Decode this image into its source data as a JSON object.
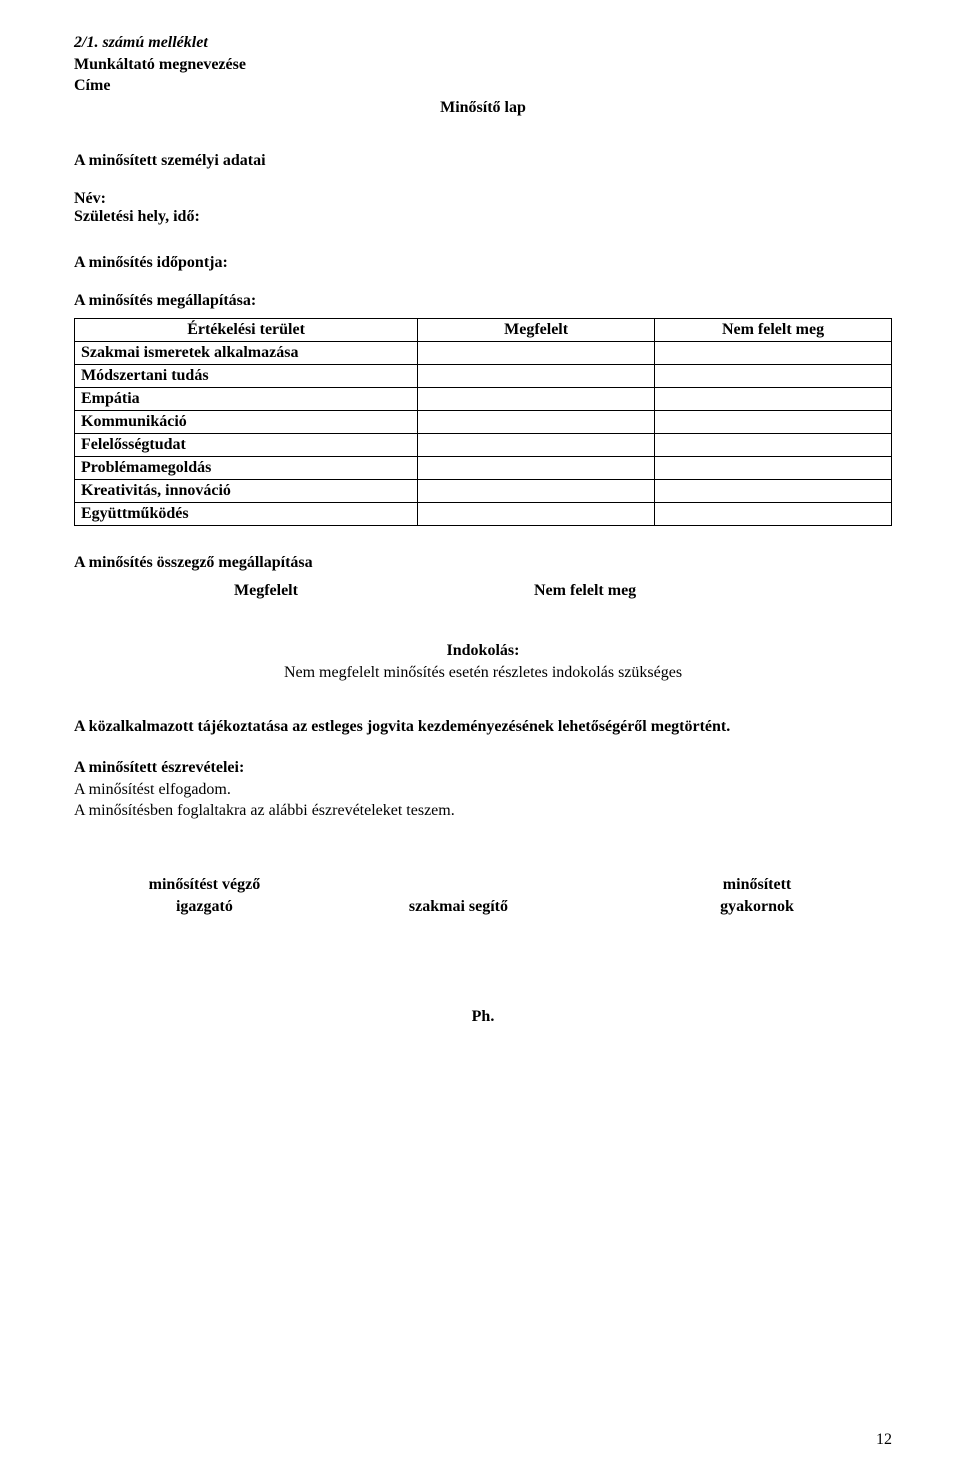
{
  "header": {
    "attachment": "2/1. számú melléklet",
    "employer_label": "Munkáltató megnevezése",
    "address_label": "Címe",
    "title": "Minősítő lap"
  },
  "section_personal": {
    "heading": "A minősített személyi adatai",
    "name_label": "Név:",
    "birth_label": "Születési hely, idő:"
  },
  "section_dates": {
    "assessment_date_label": "A minősítés időpontja:",
    "assessment_finding_label": "A minősítés megállapítása:"
  },
  "table": {
    "col_area": "Értékelési terület",
    "col_pass": "Megfelelt",
    "col_fail": "Nem felelt meg",
    "rows": [
      "Szakmai ismeretek alkalmazása",
      "Módszertani tudás",
      "Empátia",
      "Kommunikáció",
      "Felelősségtudat",
      "Problémamegoldás",
      "Kreativitás, innováció",
      "Együttműködés"
    ]
  },
  "summary": {
    "heading": "A minősítés összegző megállapítása",
    "pass": "Megfelelt",
    "fail": "Nem felelt meg"
  },
  "justification": {
    "heading": "Indokolás:",
    "text": "Nem megfelelt minősítés esetén részletes indokolás szükséges"
  },
  "dispute_info": "A közalkalmazott tájékoztatása az estleges jogvita kezdeményezésének lehetőségéről megtörtént.",
  "remarks": {
    "heading": "A minősített észrevételei:",
    "line1": "A minősítést elfogadom.",
    "line2": "A minősítésben foglaltakra az alábbi észrevételeket teszem."
  },
  "signatures": {
    "col0_line1": "minősítést végző",
    "col0_line2": "igazgató",
    "col1_line1": "szakmai segítő",
    "col2_line1": "minősített",
    "col2_line2": "gyakornok"
  },
  "ph": "Ph.",
  "page_number": "12"
}
